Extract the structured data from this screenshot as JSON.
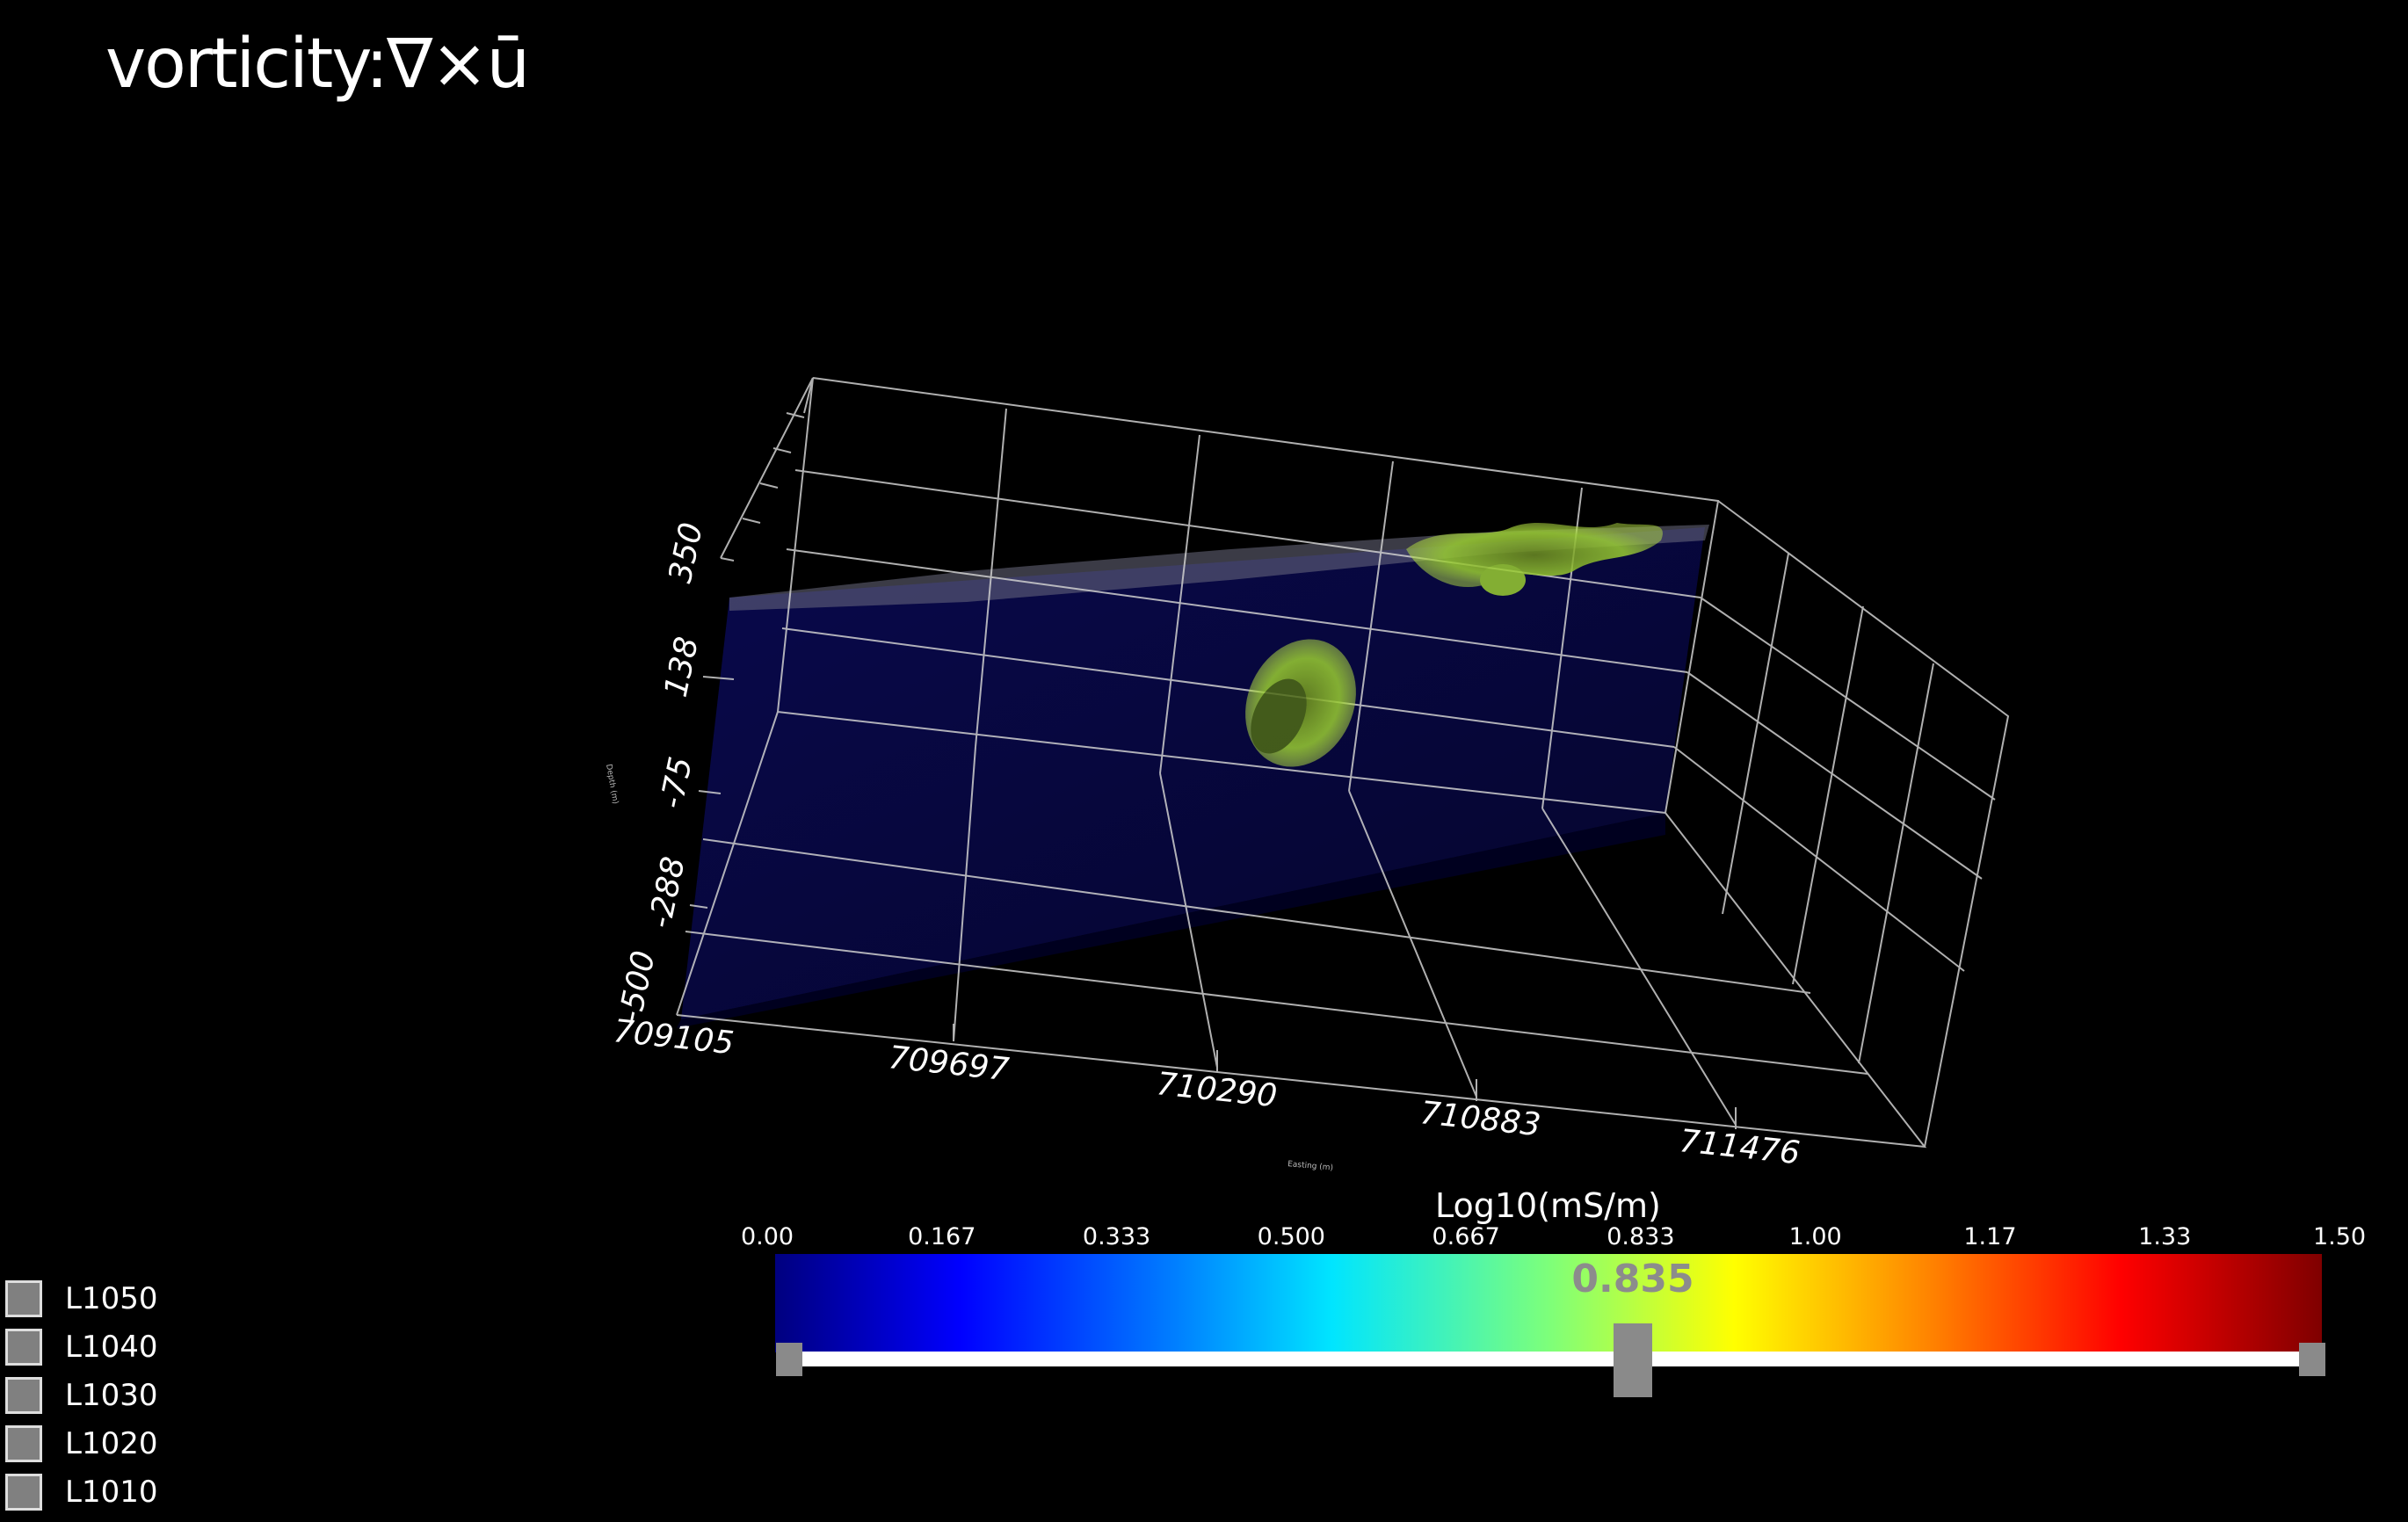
{
  "app": {
    "logo_text": "vorticity:∇×ū"
  },
  "axes": {
    "x_ticks": [
      "709105",
      "709697",
      "710290",
      "710883",
      "711476"
    ],
    "y_ticks": [
      "350",
      "138",
      "-75",
      "-288",
      "-500"
    ],
    "x_title": "Easting (m)",
    "y_title": "Depth (m)"
  },
  "colorbar": {
    "title": "Log10(mS/m)",
    "ticks": [
      "0.00",
      "0.167",
      "0.333",
      "0.500",
      "0.667",
      "0.833",
      "1.00",
      "1.17",
      "1.33",
      "1.50"
    ],
    "colormap_stops": [
      "#00007f",
      "#0000ff",
      "#0080ff",
      "#00e5ff",
      "#7dff7a",
      "#ffff00",
      "#ff8000",
      "#ff0000",
      "#7f0000"
    ]
  },
  "slider": {
    "value": "0.835",
    "min": 0.0,
    "max": 1.5,
    "fraction": 0.5567
  },
  "layers": [
    {
      "label": "L1050"
    },
    {
      "label": "L1040"
    },
    {
      "label": "L1030"
    },
    {
      "label": "L1020"
    },
    {
      "label": "L1010"
    }
  ],
  "colors": {
    "background": "#000000",
    "isosurface": "#9acd32",
    "grid": "#cfcfcf",
    "slider_handle": "#8a8a8a"
  }
}
